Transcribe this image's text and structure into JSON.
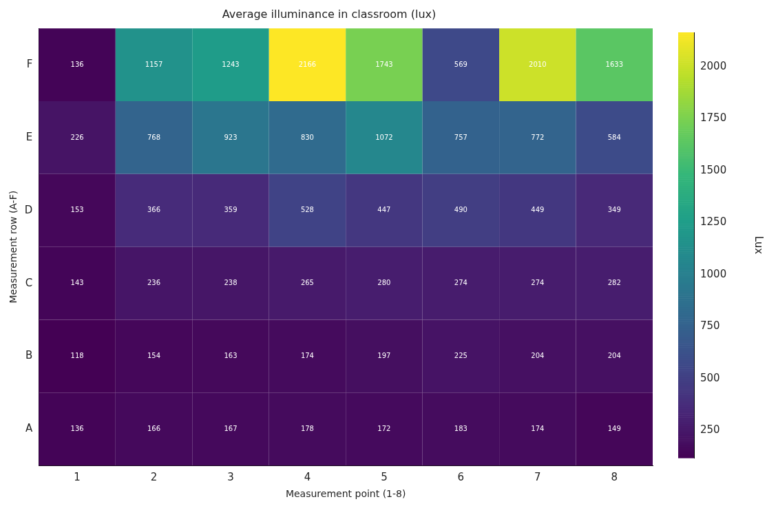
{
  "chart_data": {
    "type": "heatmap",
    "title": "Average illuminance in classroom (lux)",
    "xlabel": "Measurement point (1-8)",
    "ylabel": "Measurement row (A-F)",
    "clabel": "Lux",
    "categories": [
      "1",
      "2",
      "3",
      "4",
      "5",
      "6",
      "7",
      "8"
    ],
    "y_categories": [
      "F",
      "E",
      "D",
      "C",
      "B",
      "A"
    ],
    "cells": [
      [
        136,
        1157,
        1243,
        2166,
        1743,
        569,
        2010,
        1633
      ],
      [
        226,
        768,
        923,
        830,
        1072,
        757,
        772,
        584
      ],
      [
        153,
        366,
        359,
        528,
        447,
        490,
        449,
        349
      ],
      [
        143,
        236,
        238,
        265,
        280,
        274,
        274,
        282
      ],
      [
        118,
        154,
        163,
        174,
        197,
        225,
        204,
        204
      ],
      [
        136,
        166,
        167,
        178,
        172,
        183,
        174,
        149
      ]
    ],
    "clim": [
      118,
      2166
    ],
    "cticks": [
      250,
      500,
      750,
      1000,
      1250,
      1500,
      1750,
      2000
    ],
    "data_labels": true
  }
}
